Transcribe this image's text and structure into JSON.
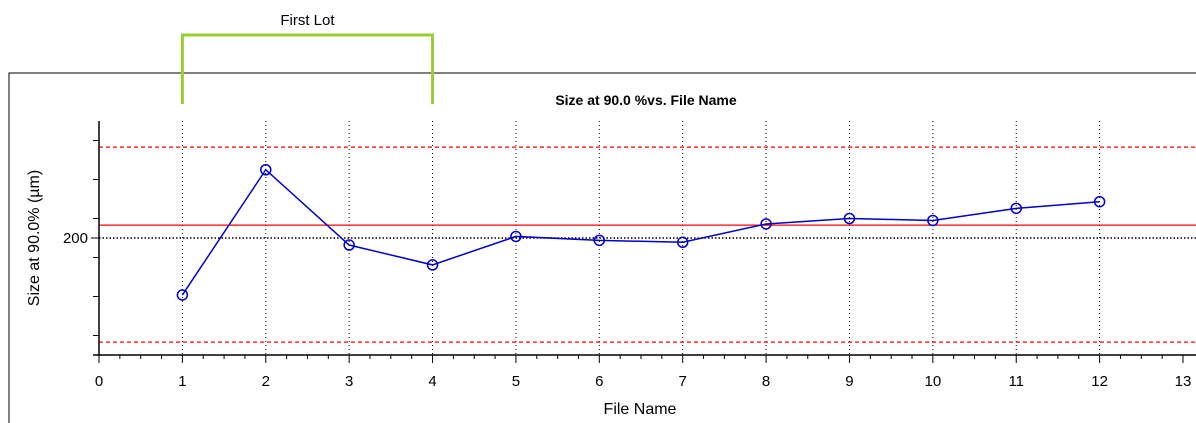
{
  "annotation": {
    "label": "First Lot",
    "x_start": 1,
    "x_end": 4,
    "color": "#9acd32"
  },
  "chart_data": {
    "type": "line",
    "title": "Size at  90.0 %vs. File Name",
    "xlabel": "File Name",
    "ylabel": "Size at  90.0% (µm)",
    "xlim": [
      0,
      13
    ],
    "ylim": [
      170,
      230
    ],
    "x_ticks": [
      0,
      1,
      2,
      3,
      4,
      5,
      6,
      7,
      8,
      9,
      10,
      11,
      12,
      13
    ],
    "x_tick_labels": [
      "0",
      "1",
      "2",
      "3",
      "4",
      "5",
      "6",
      "7",
      "8",
      "9",
      "10",
      "11",
      "12",
      "13"
    ],
    "y_ticks": [
      200
    ],
    "y_tick_labels": [
      "200"
    ],
    "grid": {
      "x": "dotted",
      "y": "none"
    },
    "reference_lines": [
      {
        "value": 200,
        "color": "#000000",
        "style": "dotted"
      },
      {
        "value": 203.3,
        "color": "#ff0000",
        "style": "solid"
      },
      {
        "value": 223.3,
        "color": "#ff0000",
        "style": "dashed"
      },
      {
        "value": 173.3,
        "color": "#ff0000",
        "style": "dashed"
      }
    ],
    "series": [
      {
        "color": "#0000cc",
        "x": [
          1,
          2,
          3,
          4,
          5,
          6,
          7,
          8,
          9,
          10,
          11,
          12
        ],
        "y": [
          185.4,
          217.5,
          198.2,
          193.1,
          200.4,
          199.4,
          198.9,
          203.6,
          205.0,
          204.5,
          207.6,
          209.3
        ]
      }
    ]
  }
}
